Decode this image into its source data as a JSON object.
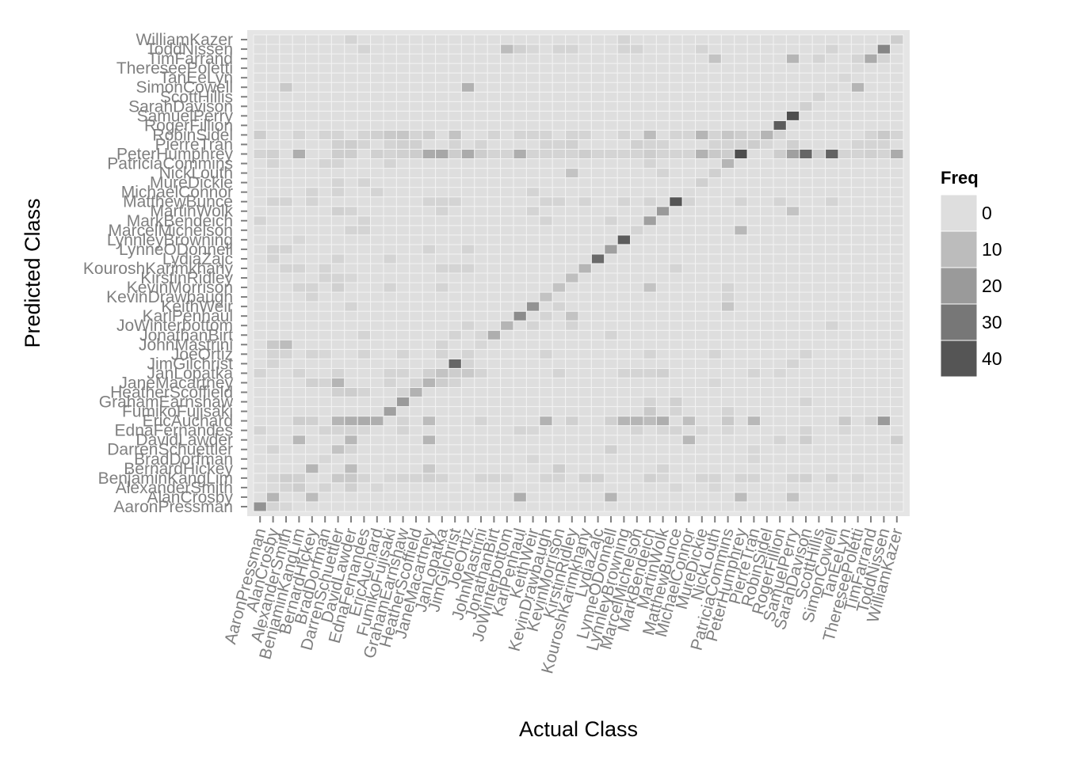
{
  "chart_data": {
    "type": "heatmap",
    "xlabel": "Actual Class",
    "ylabel": "Predicted Class",
    "classes": [
      "AaronPressman",
      "AlanCrosby",
      "AlexanderSmith",
      "BenjaminKangLim",
      "BernardHickey",
      "BradDorfman",
      "DarrenSchuettler",
      "DavidLawder",
      "EdnaFernandes",
      "EricAuchard",
      "FumikoFujisaki",
      "GrahamEarnshaw",
      "HeatherScoffield",
      "JaneMacartney",
      "JanLopatka",
      "JimGilchrist",
      "JoeOrtiz",
      "JohnMastrini",
      "JonathanBirt",
      "JoWinterbottom",
      "KarlPenhaul",
      "KeithWeir",
      "KevinDrawbaugh",
      "KevinMorrison",
      "KirstinRidley",
      "KouroshKarimkhany",
      "LydiaZajc",
      "LynneODonnell",
      "LynnleyBrowning",
      "MarcelMichelson",
      "MarkBendeich",
      "MartinWolk",
      "MatthewBunce",
      "MichaelConnor",
      "MureDickie",
      "NickLouth",
      "PatriciaCommins",
      "PeterHumphrey",
      "PierreTran",
      "RobinSidel",
      "RogerFillion",
      "SamuelPerry",
      "SarahDavison",
      "ScottHillis",
      "SimonCowell",
      "TanEeLyn",
      "ThereseePoletti",
      "TimFarrand",
      "ToddNissen",
      "WilliamKazer"
    ],
    "diagonal": [
      22,
      12,
      3,
      8,
      12,
      10,
      8,
      11,
      5,
      14,
      18,
      20,
      13,
      12,
      8,
      35,
      7,
      2,
      14,
      12,
      24,
      22,
      8,
      8,
      9,
      12,
      34,
      18,
      38,
      8,
      18,
      20,
      40,
      1,
      4,
      4,
      12,
      42,
      5,
      12,
      38,
      42,
      4,
      3,
      1,
      2,
      1,
      15,
      26,
      5
    ],
    "off_diagonal": [
      [
        1,
        0,
        3
      ],
      [
        2,
        0,
        2
      ],
      [
        1,
        2,
        1
      ],
      [
        0,
        8,
        3
      ],
      [
        4,
        1,
        10
      ],
      [
        27,
        1,
        12
      ],
      [
        20,
        1,
        14
      ],
      [
        37,
        1,
        10
      ],
      [
        41,
        1,
        8
      ],
      [
        3,
        2,
        5
      ],
      [
        5,
        2,
        3
      ],
      [
        7,
        2,
        4
      ],
      [
        9,
        2,
        2
      ],
      [
        32,
        2,
        2
      ],
      [
        35,
        2,
        2
      ],
      [
        1,
        3,
        2
      ],
      [
        2,
        3,
        5
      ],
      [
        3,
        3,
        4
      ],
      [
        6,
        3,
        6
      ],
      [
        7,
        3,
        6
      ],
      [
        8,
        3,
        3
      ],
      [
        10,
        3,
        2
      ],
      [
        11,
        3,
        3
      ],
      [
        12,
        3,
        3
      ],
      [
        13,
        3,
        4
      ],
      [
        14,
        3,
        3
      ],
      [
        17,
        3,
        3
      ],
      [
        18,
        3,
        3
      ],
      [
        19,
        3,
        2
      ],
      [
        22,
        3,
        3
      ],
      [
        23,
        3,
        3
      ],
      [
        25,
        3,
        4
      ],
      [
        26,
        3,
        4
      ],
      [
        30,
        3,
        4
      ],
      [
        31,
        3,
        2
      ],
      [
        34,
        3,
        3
      ],
      [
        35,
        3,
        3
      ],
      [
        37,
        3,
        3
      ],
      [
        38,
        3,
        3
      ],
      [
        41,
        3,
        3
      ],
      [
        42,
        3,
        4
      ],
      [
        44,
        3,
        3
      ],
      [
        46,
        3,
        2
      ],
      [
        7,
        4,
        10
      ],
      [
        13,
        4,
        6
      ],
      [
        23,
        4,
        5
      ],
      [
        31,
        4,
        3
      ],
      [
        5,
        5,
        2
      ],
      [
        21,
        5,
        2
      ],
      [
        38,
        5,
        2
      ],
      [
        1,
        6,
        3
      ],
      [
        7,
        6,
        3
      ],
      [
        27,
        6,
        4
      ],
      [
        38,
        6,
        2
      ],
      [
        3,
        7,
        11
      ],
      [
        13,
        7,
        12
      ],
      [
        33,
        7,
        11
      ],
      [
        40,
        7,
        3
      ],
      [
        42,
        7,
        5
      ],
      [
        49,
        7,
        5
      ],
      [
        5,
        8,
        3
      ],
      [
        6,
        8,
        3
      ],
      [
        7,
        8,
        3
      ],
      [
        8,
        8,
        2
      ],
      [
        11,
        8,
        3
      ],
      [
        20,
        8,
        3
      ],
      [
        21,
        8,
        2
      ],
      [
        29,
        8,
        3
      ],
      [
        31,
        8,
        2
      ],
      [
        32,
        8,
        3
      ],
      [
        34,
        8,
        2
      ],
      [
        36,
        8,
        2
      ],
      [
        42,
        8,
        3
      ],
      [
        45,
        8,
        2
      ],
      [
        3,
        9,
        5
      ],
      [
        4,
        9,
        4
      ],
      [
        6,
        9,
        12
      ],
      [
        7,
        9,
        14
      ],
      [
        8,
        9,
        15
      ],
      [
        11,
        9,
        3
      ],
      [
        13,
        9,
        10
      ],
      [
        17,
        9,
        3
      ],
      [
        22,
        9,
        13
      ],
      [
        24,
        9,
        4
      ],
      [
        27,
        9,
        4
      ],
      [
        28,
        9,
        12
      ],
      [
        29,
        9,
        12
      ],
      [
        30,
        9,
        10
      ],
      [
        31,
        9,
        14
      ],
      [
        33,
        9,
        9
      ],
      [
        36,
        9,
        6
      ],
      [
        38,
        9,
        11
      ],
      [
        45,
        9,
        6
      ],
      [
        47,
        9,
        3
      ],
      [
        48,
        9,
        20
      ],
      [
        30,
        10,
        6
      ],
      [
        32,
        10,
        3
      ],
      [
        36,
        10,
        3
      ],
      [
        30,
        11,
        3
      ],
      [
        32,
        11,
        4
      ],
      [
        42,
        11,
        3
      ],
      [
        6,
        12,
        4
      ],
      [
        7,
        12,
        5
      ],
      [
        8,
        12,
        3
      ],
      [
        11,
        12,
        3
      ],
      [
        4,
        13,
        4
      ],
      [
        5,
        13,
        3
      ],
      [
        6,
        13,
        12
      ],
      [
        10,
        13,
        3
      ],
      [
        12,
        13,
        3
      ],
      [
        14,
        13,
        5
      ],
      [
        15,
        13,
        3
      ],
      [
        35,
        13,
        2
      ],
      [
        0,
        14,
        3
      ],
      [
        3,
        14,
        3
      ],
      [
        6,
        14,
        3
      ],
      [
        10,
        14,
        3
      ],
      [
        11,
        14,
        3
      ],
      [
        13,
        14,
        4
      ],
      [
        15,
        14,
        5
      ],
      [
        16,
        14,
        6
      ],
      [
        17,
        14,
        3
      ],
      [
        23,
        14,
        3
      ],
      [
        28,
        14,
        3
      ],
      [
        29,
        14,
        3
      ],
      [
        30,
        14,
        3
      ],
      [
        31,
        14,
        4
      ],
      [
        38,
        14,
        3
      ],
      [
        40,
        14,
        2
      ],
      [
        1,
        15,
        3
      ],
      [
        16,
        15,
        3
      ],
      [
        41,
        15,
        3
      ],
      [
        1,
        16,
        3
      ],
      [
        2,
        16,
        3
      ],
      [
        4,
        16,
        3
      ],
      [
        5,
        16,
        2
      ],
      [
        8,
        16,
        3
      ],
      [
        11,
        16,
        3
      ],
      [
        14,
        16,
        3
      ],
      [
        16,
        16,
        3
      ],
      [
        22,
        16,
        3
      ],
      [
        30,
        16,
        3
      ],
      [
        35,
        16,
        3
      ],
      [
        42,
        16,
        3
      ],
      [
        1,
        17,
        6
      ],
      [
        2,
        17,
        10
      ],
      [
        14,
        17,
        3
      ],
      [
        8,
        18,
        3
      ],
      [
        15,
        18,
        3
      ],
      [
        17,
        18,
        2
      ],
      [
        27,
        18,
        3
      ],
      [
        16,
        19,
        3
      ],
      [
        21,
        19,
        3
      ],
      [
        24,
        19,
        3
      ],
      [
        44,
        19,
        3
      ],
      [
        22,
        20,
        3
      ],
      [
        24,
        20,
        8
      ],
      [
        7,
        21,
        3
      ],
      [
        23,
        21,
        3
      ],
      [
        36,
        21,
        7
      ],
      [
        4,
        22,
        3
      ],
      [
        36,
        22,
        3
      ],
      [
        3,
        23,
        3
      ],
      [
        4,
        23,
        3
      ],
      [
        6,
        23,
        4
      ],
      [
        10,
        23,
        3
      ],
      [
        14,
        23,
        3
      ],
      [
        30,
        23,
        8
      ],
      [
        36,
        23,
        3
      ],
      [
        5,
        24,
        3
      ],
      [
        6,
        24,
        3
      ],
      [
        7,
        24,
        2
      ],
      [
        2,
        25,
        3
      ],
      [
        3,
        25,
        3
      ],
      [
        5,
        25,
        3
      ],
      [
        14,
        25,
        3
      ],
      [
        15,
        25,
        3
      ],
      [
        16,
        25,
        3
      ],
      [
        32,
        25,
        3
      ],
      [
        1,
        26,
        3
      ],
      [
        6,
        26,
        3
      ],
      [
        10,
        26,
        3
      ],
      [
        1,
        27,
        3
      ],
      [
        2,
        27,
        3
      ],
      [
        13,
        27,
        3
      ],
      [
        16,
        27,
        3
      ],
      [
        3,
        28,
        2
      ],
      [
        7,
        29,
        3
      ],
      [
        8,
        29,
        3
      ],
      [
        29,
        29,
        3
      ],
      [
        37,
        29,
        11
      ],
      [
        0,
        30,
        3
      ],
      [
        8,
        30,
        3
      ],
      [
        22,
        30,
        3
      ],
      [
        27,
        30,
        3
      ],
      [
        6,
        31,
        4
      ],
      [
        7,
        31,
        3
      ],
      [
        14,
        31,
        3
      ],
      [
        21,
        31,
        3
      ],
      [
        41,
        31,
        8
      ],
      [
        1,
        32,
        3
      ],
      [
        2,
        32,
        3
      ],
      [
        4,
        32,
        3
      ],
      [
        13,
        32,
        3
      ],
      [
        14,
        32,
        3
      ],
      [
        15,
        32,
        3
      ],
      [
        22,
        32,
        3
      ],
      [
        23,
        32,
        3
      ],
      [
        25,
        32,
        3
      ],
      [
        28,
        32,
        3
      ],
      [
        30,
        32,
        3
      ],
      [
        33,
        32,
        3
      ],
      [
        37,
        32,
        3
      ],
      [
        40,
        32,
        3
      ],
      [
        44,
        32,
        3
      ],
      [
        4,
        33,
        3
      ],
      [
        6,
        33,
        3
      ],
      [
        9,
        33,
        3
      ],
      [
        21,
        33,
        3
      ],
      [
        6,
        34,
        3
      ],
      [
        8,
        34,
        3
      ],
      [
        24,
        35,
        8
      ],
      [
        31,
        35,
        3
      ],
      [
        1,
        36,
        3
      ],
      [
        5,
        36,
        3
      ],
      [
        6,
        36,
        3
      ],
      [
        10,
        36,
        3
      ],
      [
        30,
        36,
        3
      ],
      [
        0,
        37,
        3
      ],
      [
        1,
        37,
        4
      ],
      [
        3,
        37,
        14
      ],
      [
        6,
        37,
        5
      ],
      [
        7,
        37,
        5
      ],
      [
        9,
        37,
        4
      ],
      [
        10,
        37,
        3
      ],
      [
        11,
        37,
        4
      ],
      [
        12,
        37,
        5
      ],
      [
        13,
        37,
        15
      ],
      [
        14,
        37,
        16
      ],
      [
        15,
        37,
        5
      ],
      [
        16,
        37,
        15
      ],
      [
        17,
        37,
        5
      ],
      [
        18,
        37,
        3
      ],
      [
        19,
        37,
        3
      ],
      [
        20,
        37,
        14
      ],
      [
        21,
        37,
        3
      ],
      [
        22,
        37,
        3
      ],
      [
        23,
        37,
        3
      ],
      [
        24,
        37,
        3
      ],
      [
        25,
        37,
        5
      ],
      [
        26,
        37,
        3
      ],
      [
        27,
        37,
        3
      ],
      [
        28,
        37,
        3
      ],
      [
        29,
        37,
        3
      ],
      [
        30,
        37,
        5
      ],
      [
        31,
        37,
        3
      ],
      [
        32,
        37,
        3
      ],
      [
        33,
        37,
        3
      ],
      [
        34,
        37,
        13
      ],
      [
        35,
        37,
        6
      ],
      [
        36,
        37,
        5
      ],
      [
        40,
        37,
        5
      ],
      [
        41,
        37,
        18
      ],
      [
        42,
        37,
        35
      ],
      [
        43,
        37,
        5
      ],
      [
        44,
        37,
        36
      ],
      [
        45,
        37,
        3
      ],
      [
        46,
        37,
        3
      ],
      [
        47,
        37,
        4
      ],
      [
        48,
        37,
        3
      ],
      [
        49,
        37,
        15
      ],
      [
        6,
        38,
        4
      ],
      [
        7,
        38,
        5
      ],
      [
        8,
        38,
        3
      ],
      [
        10,
        38,
        3
      ],
      [
        11,
        38,
        4
      ],
      [
        12,
        38,
        4
      ],
      [
        15,
        38,
        3
      ],
      [
        17,
        38,
        3
      ],
      [
        22,
        38,
        3
      ],
      [
        23,
        38,
        3
      ],
      [
        24,
        38,
        4
      ],
      [
        29,
        38,
        4
      ],
      [
        30,
        38,
        3
      ],
      [
        31,
        38,
        3
      ],
      [
        35,
        38,
        3
      ],
      [
        36,
        38,
        3
      ],
      [
        37,
        38,
        3
      ],
      [
        39,
        38,
        2
      ],
      [
        41,
        38,
        4
      ],
      [
        46,
        38,
        3
      ],
      [
        47,
        38,
        3
      ],
      [
        48,
        38,
        3
      ],
      [
        0,
        39,
        5
      ],
      [
        3,
        39,
        3
      ],
      [
        5,
        39,
        3
      ],
      [
        6,
        39,
        3
      ],
      [
        8,
        39,
        3
      ],
      [
        9,
        39,
        4
      ],
      [
        10,
        39,
        6
      ],
      [
        11,
        39,
        7
      ],
      [
        12,
        39,
        3
      ],
      [
        13,
        39,
        5
      ],
      [
        15,
        39,
        8
      ],
      [
        18,
        39,
        3
      ],
      [
        20,
        39,
        3
      ],
      [
        21,
        39,
        3
      ],
      [
        22,
        39,
        3
      ],
      [
        24,
        39,
        3
      ],
      [
        25,
        39,
        3
      ],
      [
        28,
        39,
        3
      ],
      [
        30,
        39,
        10
      ],
      [
        32,
        39,
        3
      ],
      [
        33,
        39,
        3
      ],
      [
        34,
        39,
        12
      ],
      [
        35,
        39,
        3
      ],
      [
        36,
        39,
        7
      ],
      [
        37,
        39,
        5
      ],
      [
        38,
        39,
        3
      ],
      [
        40,
        39,
        3
      ],
      [
        47,
        39,
        3
      ],
      [
        48,
        39,
        6
      ],
      [
        49,
        39,
        3
      ],
      [
        2,
        44,
        6
      ],
      [
        16,
        44,
        13
      ],
      [
        46,
        44,
        12
      ],
      [
        35,
        47,
        8
      ],
      [
        41,
        47,
        12
      ],
      [
        43,
        47,
        3
      ],
      [
        46,
        47,
        3
      ],
      [
        48,
        47,
        3
      ],
      [
        8,
        48,
        3
      ],
      [
        19,
        48,
        10
      ],
      [
        20,
        48,
        4
      ],
      [
        21,
        48,
        2
      ],
      [
        23,
        48,
        3
      ],
      [
        24,
        48,
        3
      ],
      [
        28,
        48,
        3
      ],
      [
        29,
        48,
        3
      ],
      [
        34,
        48,
        3
      ],
      [
        44,
        48,
        3
      ],
      [
        7,
        49,
        3
      ],
      [
        28,
        49,
        3
      ]
    ],
    "legend": {
      "title": "Freq",
      "labels": [
        "0",
        "10",
        "20",
        "30",
        "40"
      ]
    },
    "grid": true
  }
}
